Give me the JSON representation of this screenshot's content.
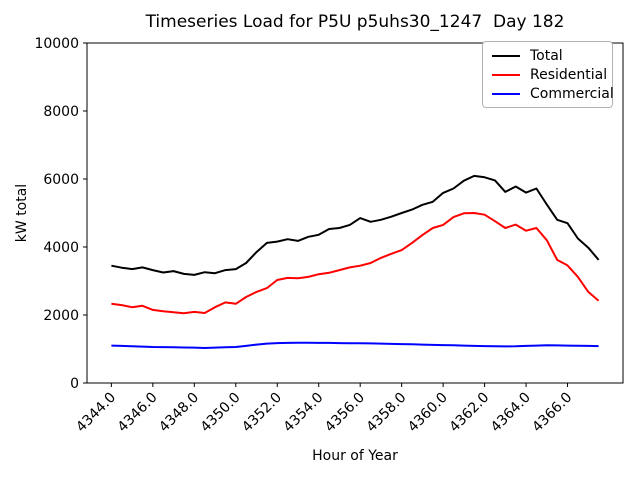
{
  "figure": {
    "background": "#ffffff"
  },
  "chart_data": {
    "type": "line",
    "title": "Timeseries Load for P5U p5uhs30_1247  Day 182",
    "xlabel": "Hour of Year",
    "ylabel": "kW total",
    "xlim": [
      4342.825,
      4368.675
    ],
    "ylim": [
      0,
      10000
    ],
    "grid": false,
    "legend_position": "upper right",
    "yticks": [
      0,
      2000,
      4000,
      6000,
      8000,
      10000
    ],
    "ytick_labels": [
      "0",
      "2000",
      "4000",
      "6000",
      "8000",
      "10000"
    ],
    "xticks": [
      4344,
      4346,
      4348,
      4350,
      4352,
      4354,
      4356,
      4358,
      4360,
      4362,
      4364,
      4366
    ],
    "xtick_labels": [
      "4344.0",
      "4346.0",
      "4348.0",
      "4350.0",
      "4352.0",
      "4354.0",
      "4356.0",
      "4358.0",
      "4360.0",
      "4362.0",
      "4364.0",
      "4366.0"
    ],
    "x": [
      4344.0,
      4344.5,
      4345.0,
      4345.5,
      4346.0,
      4346.5,
      4347.0,
      4347.5,
      4348.0,
      4348.5,
      4349.0,
      4349.5,
      4350.0,
      4350.5,
      4351.0,
      4351.5,
      4352.0,
      4352.5,
      4353.0,
      4353.5,
      4354.0,
      4354.5,
      4355.0,
      4355.5,
      4356.0,
      4356.5,
      4357.0,
      4357.5,
      4358.0,
      4358.5,
      4359.0,
      4359.5,
      4360.0,
      4360.5,
      4361.0,
      4361.5,
      4362.0,
      4362.5,
      4363.0,
      4363.5,
      4364.0,
      4364.5,
      4365.0,
      4365.5,
      4366.0,
      4366.5,
      4367.0,
      4367.5
    ],
    "series": [
      {
        "name": "Total",
        "color": "#000000",
        "values": [
          3450,
          3390,
          3350,
          3400,
          3320,
          3250,
          3290,
          3210,
          3180,
          3260,
          3230,
          3320,
          3350,
          3530,
          3850,
          4120,
          4160,
          4230,
          4180,
          4300,
          4360,
          4530,
          4560,
          4650,
          4850,
          4740,
          4800,
          4890,
          5000,
          5100,
          5240,
          5330,
          5590,
          5720,
          5950,
          6090,
          6050,
          5960,
          5620,
          5780,
          5600,
          5720,
          5250,
          4800,
          4700,
          4250,
          3980,
          3620
        ]
      },
      {
        "name": "Residential",
        "color": "#ff0000",
        "values": [
          2330,
          2290,
          2230,
          2270,
          2150,
          2110,
          2080,
          2050,
          2090,
          2060,
          2230,
          2370,
          2330,
          2530,
          2680,
          2790,
          3030,
          3090,
          3080,
          3120,
          3200,
          3240,
          3320,
          3400,
          3450,
          3530,
          3680,
          3800,
          3910,
          4120,
          4350,
          4560,
          4650,
          4880,
          4990,
          5000,
          4950,
          4760,
          4560,
          4660,
          4480,
          4560,
          4200,
          3620,
          3460,
          3120,
          2680,
          2420
        ]
      },
      {
        "name": "Commercial",
        "color": "#0000ff",
        "values": [
          1100,
          1090,
          1080,
          1070,
          1060,
          1055,
          1050,
          1045,
          1040,
          1030,
          1040,
          1050,
          1060,
          1090,
          1130,
          1160,
          1175,
          1180,
          1185,
          1185,
          1180,
          1180,
          1175,
          1170,
          1170,
          1165,
          1160,
          1150,
          1145,
          1140,
          1130,
          1120,
          1115,
          1110,
          1100,
          1090,
          1085,
          1080,
          1075,
          1080,
          1090,
          1100,
          1110,
          1105,
          1100,
          1095,
          1090,
          1085
        ]
      }
    ]
  }
}
